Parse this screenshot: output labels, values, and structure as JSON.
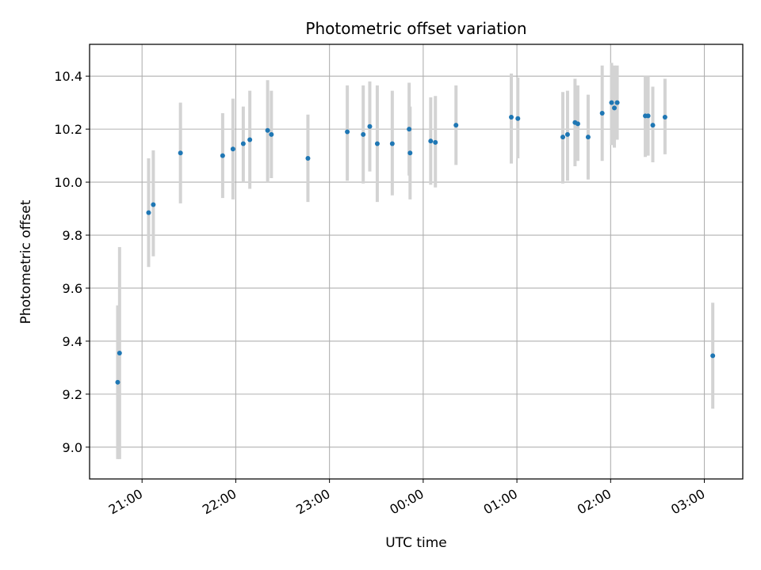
{
  "chart_data": {
    "type": "scatter",
    "title": "Photometric offset variation",
    "xlabel": "UTC time",
    "ylabel": "Photometric offset",
    "x_axis": "time (hours after 00:00 UTC; ticks labelled as clock time)",
    "xlim": [
      -3.56,
      3.41
    ],
    "ylim": [
      8.88,
      10.52
    ],
    "grid": true,
    "legend": "none",
    "colors": {
      "points": "#1f77b4",
      "error_bars": "#d3d3d3",
      "grid": "#b0b0b0"
    },
    "x_ticks": [
      {
        "value": -3,
        "label": "21:00"
      },
      {
        "value": -2,
        "label": "22:00"
      },
      {
        "value": -1,
        "label": "23:00"
      },
      {
        "value": 0,
        "label": "00:00"
      },
      {
        "value": 1,
        "label": "01:00"
      },
      {
        "value": 2,
        "label": "02:00"
      },
      {
        "value": 3,
        "label": "03:00"
      }
    ],
    "y_ticks": [
      {
        "value": 9.0,
        "label": "9.0"
      },
      {
        "value": 9.2,
        "label": "9.2"
      },
      {
        "value": 9.4,
        "label": "9.4"
      },
      {
        "value": 9.6,
        "label": "9.6"
      },
      {
        "value": 9.8,
        "label": "9.8"
      },
      {
        "value": 10.0,
        "label": "10.0"
      },
      {
        "value": 10.2,
        "label": "10.2"
      },
      {
        "value": 10.4,
        "label": "10.4"
      }
    ],
    "points": [
      {
        "x": -3.26,
        "y": 9.245,
        "lo": 8.955,
        "hi": 9.535
      },
      {
        "x": -3.24,
        "y": 9.355,
        "lo": 8.955,
        "hi": 9.755
      },
      {
        "x": -2.93,
        "y": 9.885,
        "lo": 9.68,
        "hi": 10.09
      },
      {
        "x": -2.88,
        "y": 9.915,
        "lo": 9.72,
        "hi": 10.12
      },
      {
        "x": -2.59,
        "y": 10.11,
        "lo": 9.92,
        "hi": 10.3
      },
      {
        "x": -2.14,
        "y": 10.1,
        "lo": 9.94,
        "hi": 10.26
      },
      {
        "x": -2.03,
        "y": 10.125,
        "lo": 9.935,
        "hi": 10.315
      },
      {
        "x": -1.92,
        "y": 10.145,
        "lo": 10.0,
        "hi": 10.285
      },
      {
        "x": -1.85,
        "y": 10.16,
        "lo": 9.975,
        "hi": 10.345
      },
      {
        "x": -1.66,
        "y": 10.195,
        "lo": 10.0,
        "hi": 10.385
      },
      {
        "x": -1.62,
        "y": 10.18,
        "lo": 10.015,
        "hi": 10.345
      },
      {
        "x": -1.23,
        "y": 10.09,
        "lo": 9.925,
        "hi": 10.255
      },
      {
        "x": -0.81,
        "y": 10.19,
        "lo": 10.005,
        "hi": 10.365
      },
      {
        "x": -0.64,
        "y": 10.18,
        "lo": 9.995,
        "hi": 10.365
      },
      {
        "x": -0.57,
        "y": 10.21,
        "lo": 10.04,
        "hi": 10.38
      },
      {
        "x": -0.49,
        "y": 10.145,
        "lo": 9.925,
        "hi": 10.365
      },
      {
        "x": -0.33,
        "y": 10.145,
        "lo": 9.95,
        "hi": 10.345
      },
      {
        "x": -0.15,
        "y": 10.2,
        "lo": 10.025,
        "hi": 10.375
      },
      {
        "x": -0.14,
        "y": 10.11,
        "lo": 9.935,
        "hi": 10.285
      },
      {
        "x": 0.08,
        "y": 10.155,
        "lo": 9.99,
        "hi": 10.32
      },
      {
        "x": 0.13,
        "y": 10.15,
        "lo": 9.98,
        "hi": 10.325
      },
      {
        "x": 0.35,
        "y": 10.215,
        "lo": 10.065,
        "hi": 10.365
      },
      {
        "x": 0.94,
        "y": 10.245,
        "lo": 10.07,
        "hi": 10.41
      },
      {
        "x": 1.01,
        "y": 10.24,
        "lo": 10.09,
        "hi": 10.395
      },
      {
        "x": 1.49,
        "y": 10.17,
        "lo": 9.995,
        "hi": 10.34
      },
      {
        "x": 1.54,
        "y": 10.18,
        "lo": 10.005,
        "hi": 10.345
      },
      {
        "x": 1.62,
        "y": 10.225,
        "lo": 10.06,
        "hi": 10.39
      },
      {
        "x": 1.65,
        "y": 10.22,
        "lo": 10.08,
        "hi": 10.365
      },
      {
        "x": 1.76,
        "y": 10.17,
        "lo": 10.01,
        "hi": 10.33
      },
      {
        "x": 1.91,
        "y": 10.26,
        "lo": 10.08,
        "hi": 10.44
      },
      {
        "x": 2.01,
        "y": 10.3,
        "lo": 10.14,
        "hi": 10.45
      },
      {
        "x": 2.04,
        "y": 10.28,
        "lo": 10.13,
        "hi": 10.44
      },
      {
        "x": 2.07,
        "y": 10.3,
        "lo": 10.16,
        "hi": 10.44
      },
      {
        "x": 2.37,
        "y": 10.25,
        "lo": 10.095,
        "hi": 10.4
      },
      {
        "x": 2.4,
        "y": 10.25,
        "lo": 10.1,
        "hi": 10.4
      },
      {
        "x": 2.45,
        "y": 10.215,
        "lo": 10.075,
        "hi": 10.36
      },
      {
        "x": 2.58,
        "y": 10.245,
        "lo": 10.105,
        "hi": 10.39
      },
      {
        "x": 3.09,
        "y": 9.345,
        "lo": 9.145,
        "hi": 9.545
      }
    ]
  }
}
